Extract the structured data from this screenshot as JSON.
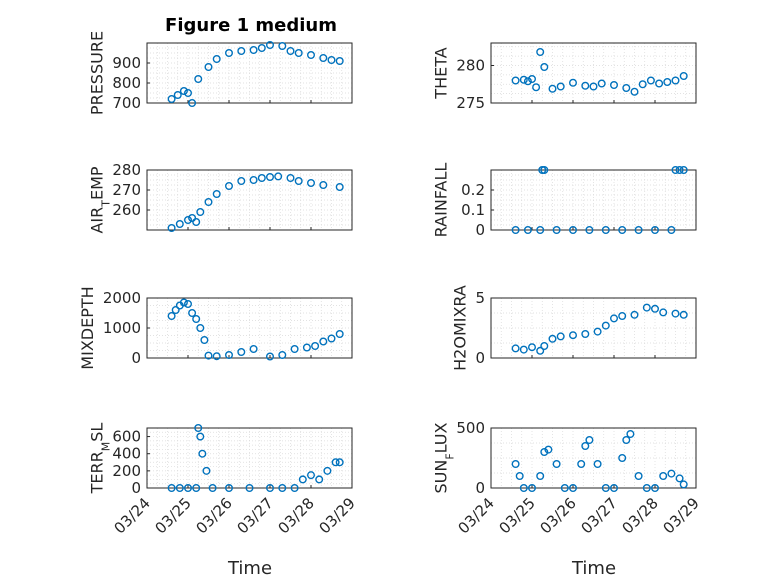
{
  "figure": {
    "title": "Figure 1 medium",
    "xlabel": "Time",
    "xticks": [
      "03/24",
      "03/25",
      "03/26",
      "03/27",
      "03/28",
      "03/29"
    ],
    "marker_color": "#0072BD"
  },
  "chart_data": [
    {
      "type": "scatter",
      "ylabel": "PRESSURE",
      "yticks": [
        700,
        800,
        900
      ],
      "ylim": [
        700,
        1000
      ],
      "grid": true,
      "x": [
        0.6,
        0.75,
        0.9,
        1.0,
        1.1,
        1.25,
        1.5,
        1.7,
        2.0,
        2.3,
        2.6,
        2.8,
        3.0,
        3.3,
        3.5,
        3.7,
        4.0,
        4.3,
        4.5,
        4.7
      ],
      "y": [
        720,
        740,
        760,
        750,
        700,
        820,
        880,
        920,
        950,
        960,
        965,
        975,
        990,
        985,
        960,
        950,
        940,
        925,
        915,
        910
      ]
    },
    {
      "type": "scatter",
      "ylabel": "THETA",
      "yticks": [
        275,
        280
      ],
      "ylim": [
        275,
        283
      ],
      "grid": true,
      "x": [
        0.6,
        0.8,
        0.9,
        1.0,
        1.1,
        1.2,
        1.3,
        1.5,
        1.7,
        2.0,
        2.3,
        2.5,
        2.7,
        3.0,
        3.3,
        3.5,
        3.7,
        3.9,
        4.1,
        4.3,
        4.5,
        4.7
      ],
      "y": [
        278,
        278.1,
        277.9,
        278.2,
        277.1,
        281.8,
        279.8,
        276.9,
        277.2,
        277.7,
        277.3,
        277.2,
        277.6,
        277.4,
        277,
        276.5,
        277.5,
        278,
        277.6,
        277.8,
        278,
        278.6
      ]
    },
    {
      "type": "scatter",
      "ylabel": "AIR_TEMP",
      "yticks": [
        260,
        270,
        280
      ],
      "ylim": [
        250,
        280
      ],
      "grid": true,
      "x": [
        0.6,
        0.8,
        1.0,
        1.1,
        1.2,
        1.3,
        1.5,
        1.7,
        2.0,
        2.3,
        2.6,
        2.8,
        3.0,
        3.2,
        3.5,
        3.7,
        4.0,
        4.3,
        4.7
      ],
      "y": [
        251,
        253,
        255,
        256,
        254,
        259,
        264,
        268,
        272,
        274.5,
        275,
        276,
        276.5,
        276.8,
        276,
        274.5,
        273.5,
        272.5,
        271.5
      ]
    },
    {
      "type": "scatter",
      "ylabel": "RAINFALL",
      "yticks": [
        0,
        0.1,
        0.2
      ],
      "ylim": [
        0,
        0.3
      ],
      "grid": true,
      "x": [
        0.6,
        0.9,
        1.2,
        1.25,
        1.3,
        1.6,
        2.0,
        2.4,
        2.8,
        3.2,
        3.6,
        4.0,
        4.4,
        4.5,
        4.6,
        4.7
      ],
      "y": [
        0,
        0,
        0,
        0.3,
        0.3,
        0,
        0,
        0,
        0,
        0,
        0,
        0,
        0,
        0.3,
        0.3,
        0.3
      ]
    },
    {
      "type": "scatter",
      "ylabel": "MIXDEPTH",
      "yticks": [
        0,
        1000,
        2000
      ],
      "ylim": [
        0,
        2000
      ],
      "grid": true,
      "x": [
        0.6,
        0.7,
        0.8,
        0.9,
        1.0,
        1.1,
        1.2,
        1.3,
        1.4,
        1.5,
        1.7,
        2.0,
        2.3,
        2.6,
        3.0,
        3.3,
        3.6,
        3.9,
        4.1,
        4.3,
        4.5,
        4.7
      ],
      "y": [
        1400,
        1600,
        1750,
        1850,
        1800,
        1500,
        1300,
        1000,
        600,
        80,
        60,
        100,
        200,
        300,
        50,
        100,
        300,
        350,
        400,
        550,
        650,
        800
      ]
    },
    {
      "type": "scatter",
      "ylabel": "H2OMIXRA",
      "yticks": [
        0,
        5
      ],
      "ylim": [
        0,
        5
      ],
      "grid": true,
      "x": [
        0.6,
        0.8,
        1.0,
        1.2,
        1.3,
        1.5,
        1.7,
        2.0,
        2.3,
        2.6,
        2.8,
        3.0,
        3.2,
        3.5,
        3.8,
        4.0,
        4.2,
        4.5,
        4.7
      ],
      "y": [
        0.8,
        0.7,
        0.9,
        0.6,
        1.0,
        1.6,
        1.8,
        1.9,
        2.0,
        2.2,
        2.7,
        3.3,
        3.5,
        3.6,
        4.2,
        4.1,
        3.8,
        3.7,
        3.6
      ]
    },
    {
      "type": "scatter",
      "ylabel": "TERR_MSL",
      "yticks": [
        0,
        200,
        400,
        600
      ],
      "ylim": [
        0,
        700
      ],
      "grid": true,
      "x": [
        0.6,
        0.8,
        1.0,
        1.2,
        1.25,
        1.3,
        1.35,
        1.45,
        1.6,
        2.0,
        2.5,
        3.0,
        3.3,
        3.6,
        3.8,
        4.0,
        4.2,
        4.4,
        4.6,
        4.7
      ],
      "y": [
        0,
        0,
        0,
        0,
        700,
        600,
        400,
        200,
        0,
        0,
        0,
        0,
        0,
        0,
        100,
        150,
        100,
        200,
        300,
        300
      ]
    },
    {
      "type": "scatter",
      "ylabel": "SUN_FLUX",
      "yticks": [
        0,
        500
      ],
      "ylim": [
        0,
        500
      ],
      "grid": true,
      "x": [
        0.6,
        0.7,
        0.8,
        1.0,
        1.2,
        1.3,
        1.4,
        1.6,
        1.8,
        2.0,
        2.2,
        2.3,
        2.4,
        2.6,
        2.8,
        3.0,
        3.2,
        3.3,
        3.4,
        3.6,
        3.8,
        4.0,
        4.2,
        4.4,
        4.6,
        4.7
      ],
      "y": [
        200,
        100,
        0,
        0,
        100,
        300,
        320,
        200,
        0,
        0,
        200,
        350,
        400,
        200,
        0,
        0,
        250,
        400,
        450,
        100,
        0,
        0,
        100,
        120,
        80,
        30
      ]
    }
  ]
}
